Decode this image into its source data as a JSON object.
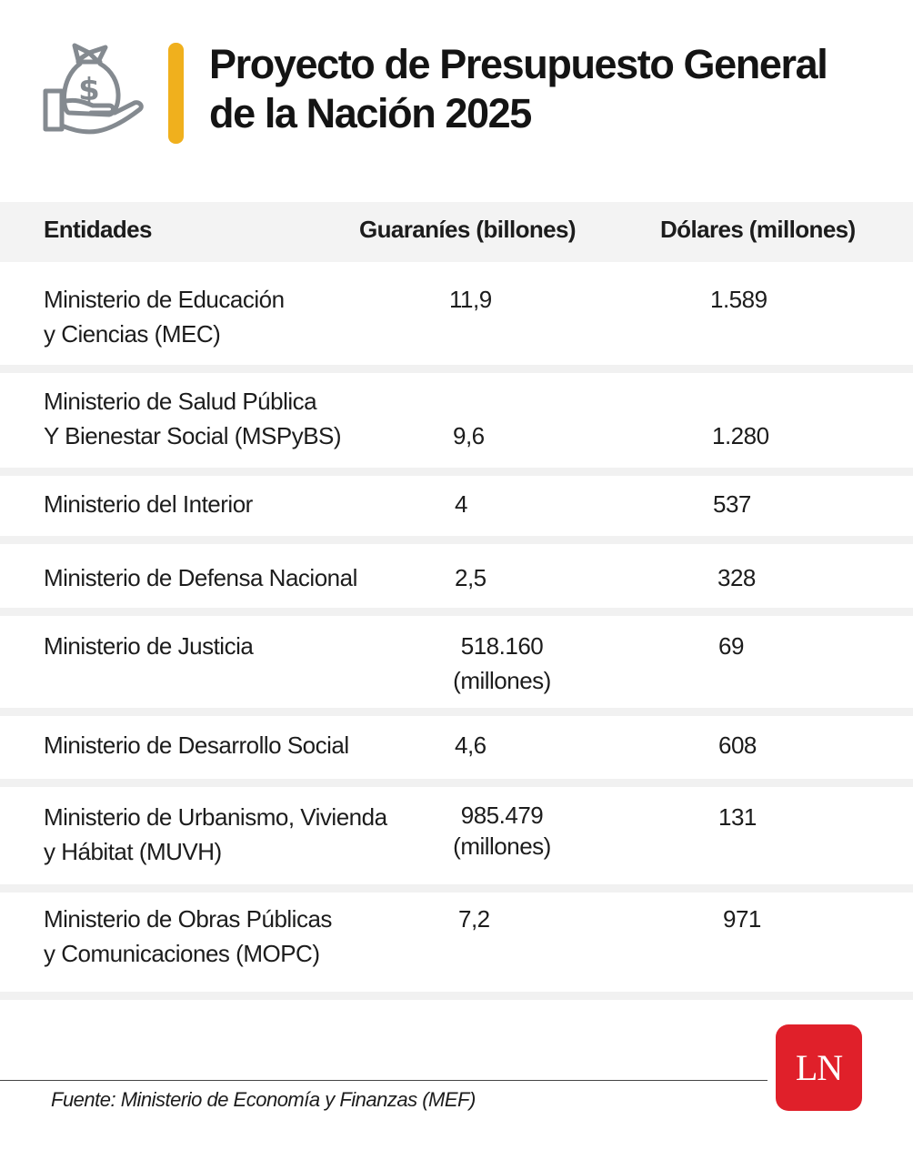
{
  "title": "Proyecto de Presupuesto General\nde la Nación 2025",
  "colors": {
    "accent": "#f0b01d",
    "icon": "#848a90",
    "logo_bg": "#e0202a"
  },
  "icon": "money-bag-hand-icon",
  "chart_data": {
    "type": "table",
    "title": "Proyecto de Presupuesto General de la Nación 2025",
    "columns": [
      "Entidades",
      "Guaraníes (billones)",
      "Dólares (millones)"
    ],
    "rows": [
      {
        "entity": "Ministerio de Educación\ny Ciencias (MEC)",
        "pyg": "11,9",
        "usd": "1.589"
      },
      {
        "entity": "Ministerio de Salud Pública\nY Bienestar Social (MSPyBS)",
        "pyg": "9,6",
        "usd": "1.280"
      },
      {
        "entity": "Ministerio del Interior",
        "pyg": "4",
        "usd": "537"
      },
      {
        "entity": "Ministerio de Defensa Nacional",
        "pyg": "2,5",
        "usd": "328"
      },
      {
        "entity": "Ministerio de Justicia",
        "pyg": "518.160\n(millones)",
        "usd": "69"
      },
      {
        "entity": "Ministerio de Desarrollo Social",
        "pyg": "4,6",
        "usd": "608"
      },
      {
        "entity": "Ministerio de Urbanismo, Vivienda\ny Hábitat (MUVH)",
        "pyg": "985.479\n(millones)",
        "usd": "131"
      },
      {
        "entity": "Ministerio de Obras Públicas\ny Comunicaciones (MOPC)",
        "pyg": "7,2",
        "usd": "971"
      }
    ]
  },
  "footer": {
    "source": "Fuente:  Ministerio de Economía y Finanzas (MEF)"
  },
  "logo": {
    "text": "LN"
  }
}
